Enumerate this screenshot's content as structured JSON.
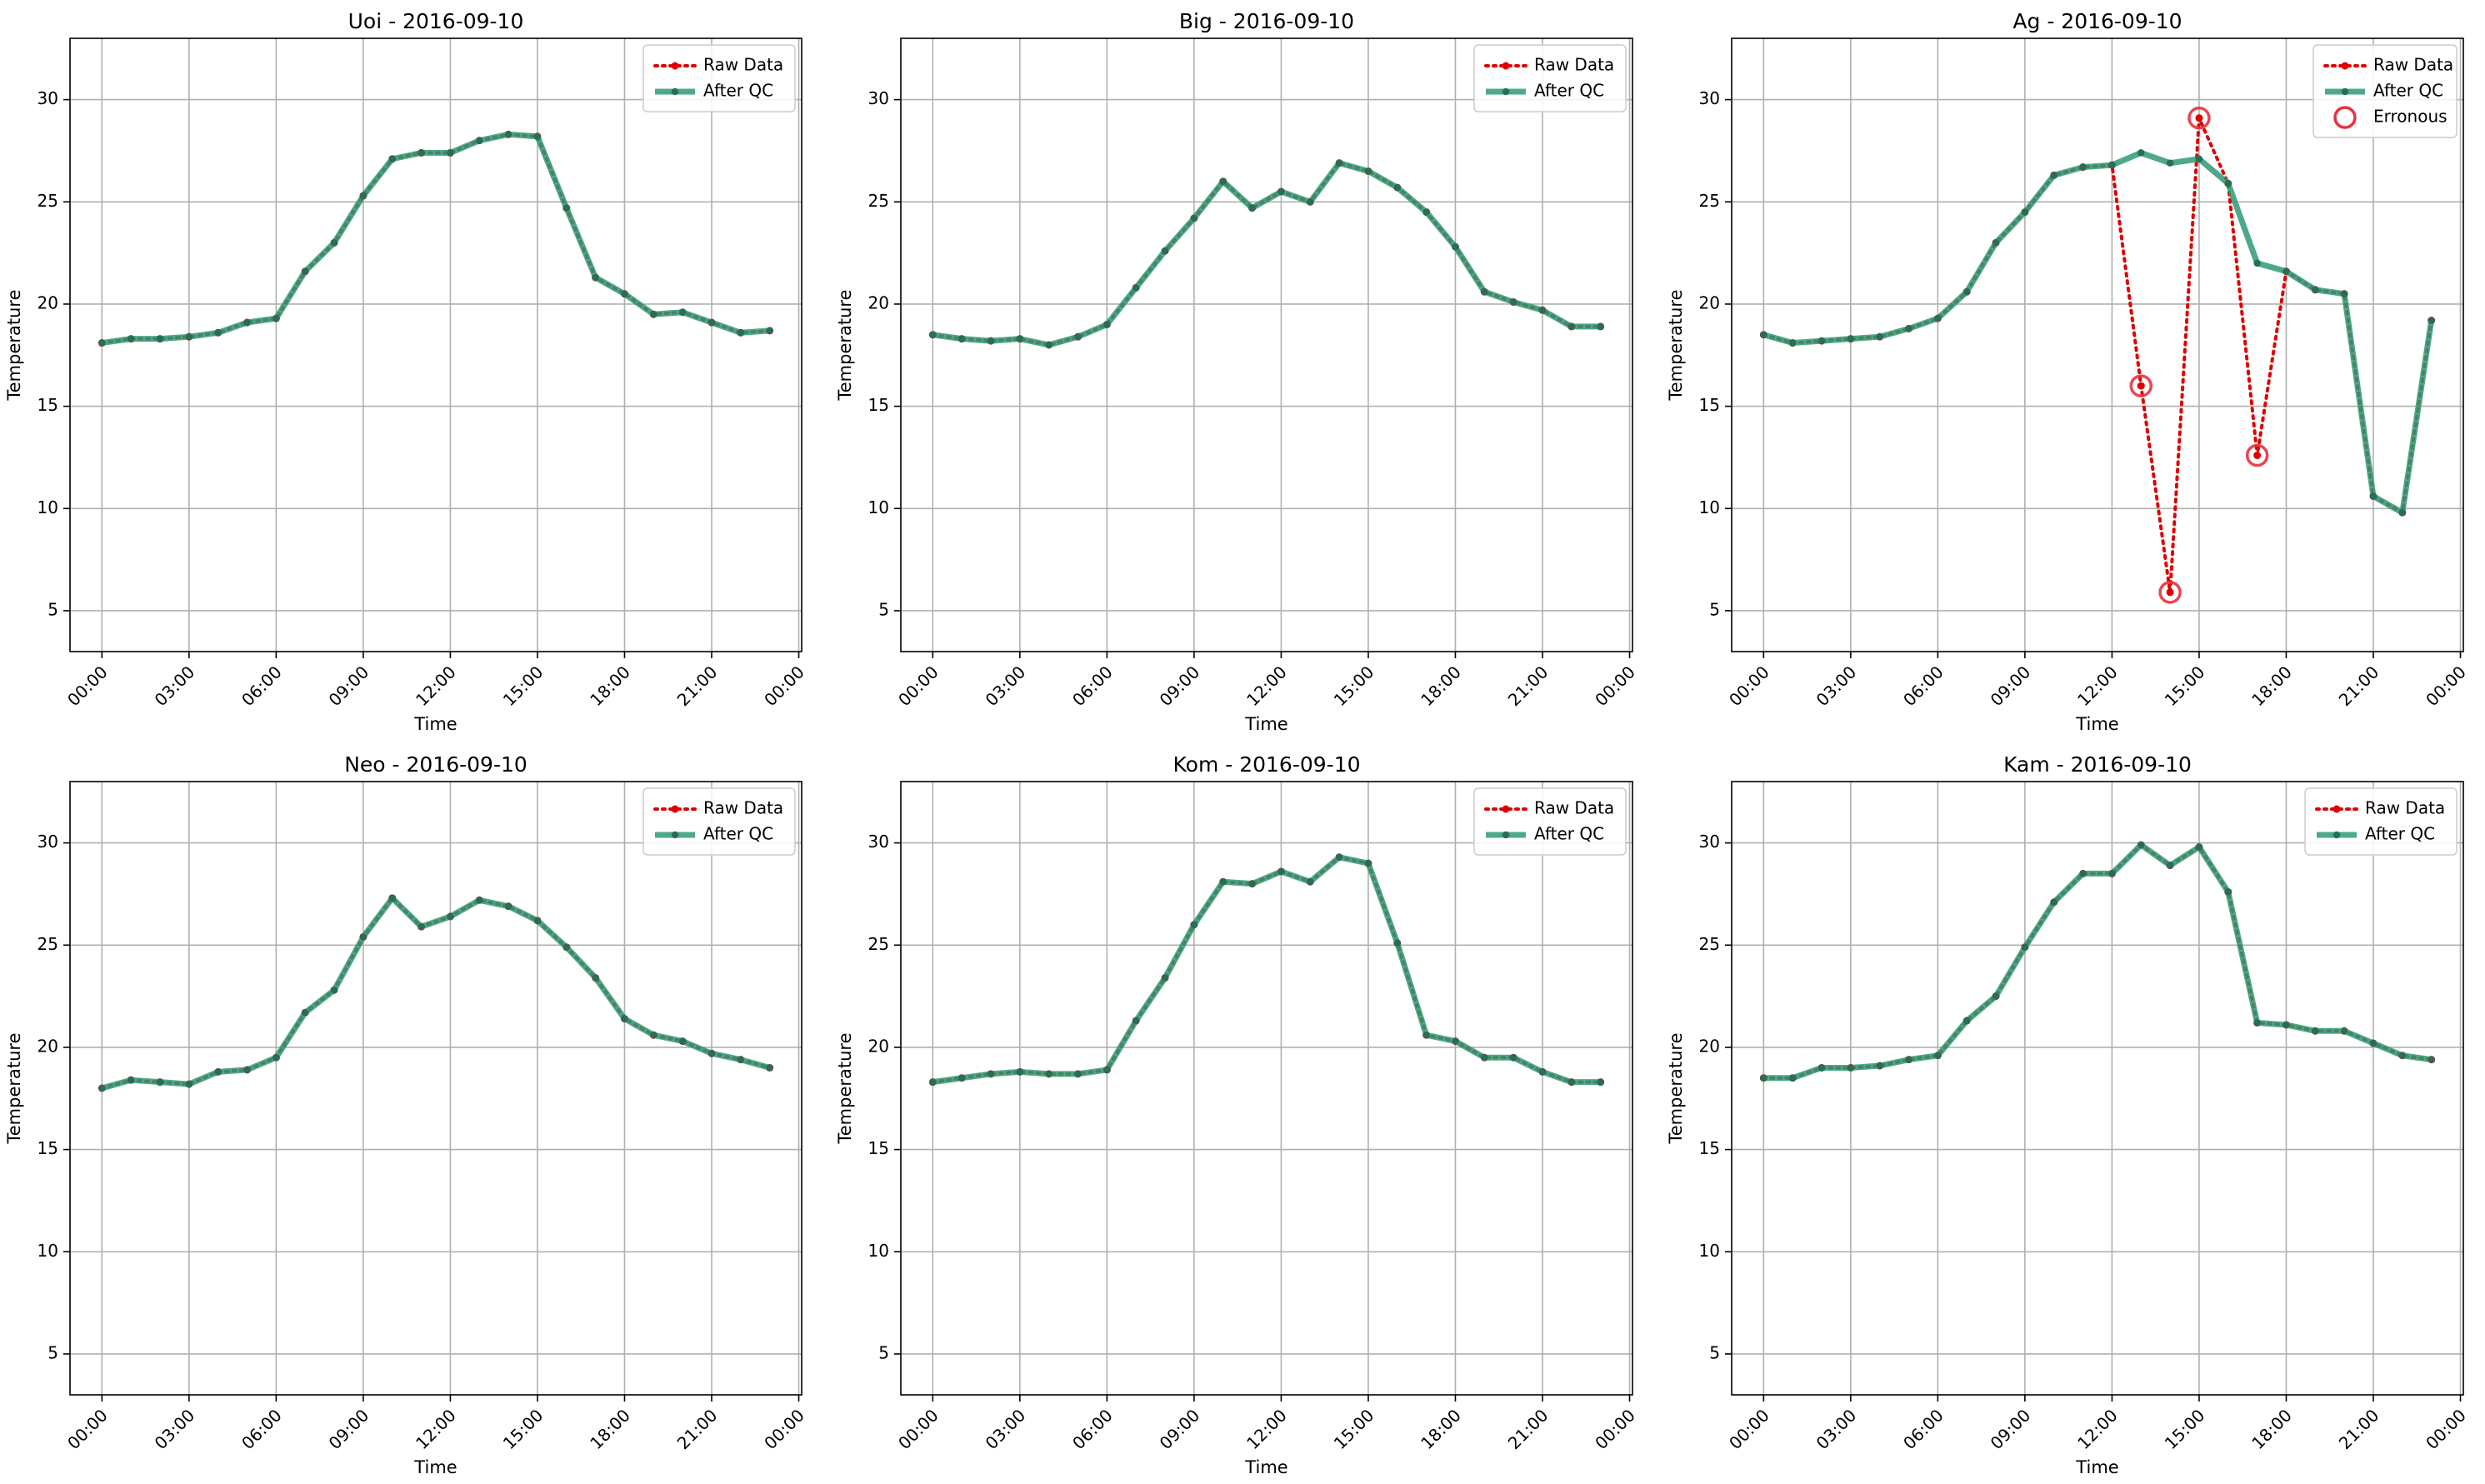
{
  "colors": {
    "raw": "#e00000",
    "qc": "#2e9a74",
    "qc_marker": "#2a6d55",
    "error": "#e8323c",
    "grid": "#b0b0b0"
  },
  "legend_labels": {
    "raw": "Raw Data",
    "qc": "After QC",
    "error": "Erronous"
  },
  "chart_data": [
    {
      "type": "line",
      "title": "Uoi - 2016-09-10",
      "xlabel": "Time",
      "ylabel": "Temperature",
      "x_ticks": [
        "00:00",
        "03:00",
        "06:00",
        "09:00",
        "12:00",
        "15:00",
        "18:00",
        "21:00",
        "00:00"
      ],
      "y_ticks": [
        5,
        10,
        15,
        20,
        25,
        30
      ],
      "ylim": [
        3,
        33
      ],
      "grid": true,
      "legend": "top-right",
      "x_hours": [
        0,
        1,
        2,
        3,
        4,
        5,
        6,
        7,
        8,
        9,
        10,
        11,
        12,
        13,
        14,
        15,
        16,
        17,
        18,
        19,
        20,
        21,
        22,
        23
      ],
      "series": [
        {
          "name": "Raw Data",
          "values": [
            18.1,
            18.3,
            18.3,
            18.4,
            18.6,
            19.1,
            19.3,
            21.6,
            23.0,
            25.3,
            27.1,
            27.4,
            27.4,
            28.0,
            28.3,
            28.2,
            24.7,
            21.3,
            20.5,
            19.5,
            19.6,
            19.1,
            18.6,
            18.7
          ]
        },
        {
          "name": "After QC",
          "values": [
            18.1,
            18.3,
            18.3,
            18.4,
            18.6,
            19.1,
            19.3,
            21.6,
            23.0,
            25.3,
            27.1,
            27.4,
            27.4,
            28.0,
            28.3,
            28.2,
            24.7,
            21.3,
            20.5,
            19.5,
            19.6,
            19.1,
            18.6,
            18.7
          ]
        }
      ]
    },
    {
      "type": "line",
      "title": "Big - 2016-09-10",
      "xlabel": "Time",
      "ylabel": "Temperature",
      "x_ticks": [
        "00:00",
        "03:00",
        "06:00",
        "09:00",
        "12:00",
        "15:00",
        "18:00",
        "21:00",
        "00:00"
      ],
      "y_ticks": [
        5,
        10,
        15,
        20,
        25,
        30
      ],
      "ylim": [
        3,
        33
      ],
      "grid": true,
      "legend": "top-right",
      "x_hours": [
        0,
        1,
        2,
        3,
        4,
        5,
        6,
        7,
        8,
        9,
        10,
        11,
        12,
        13,
        14,
        15,
        16,
        17,
        18,
        19,
        20,
        21,
        22,
        23
      ],
      "series": [
        {
          "name": "Raw Data",
          "values": [
            18.5,
            18.3,
            18.2,
            18.3,
            18.0,
            18.4,
            19.0,
            20.8,
            22.6,
            24.2,
            26.0,
            24.7,
            25.5,
            25.0,
            26.9,
            26.5,
            25.7,
            24.5,
            22.8,
            20.6,
            20.1,
            19.7,
            18.9,
            18.9
          ]
        },
        {
          "name": "After QC",
          "values": [
            18.5,
            18.3,
            18.2,
            18.3,
            18.0,
            18.4,
            19.0,
            20.8,
            22.6,
            24.2,
            26.0,
            24.7,
            25.5,
            25.0,
            26.9,
            26.5,
            25.7,
            24.5,
            22.8,
            20.6,
            20.1,
            19.7,
            18.9,
            18.9
          ]
        }
      ]
    },
    {
      "type": "line",
      "title": "Ag - 2016-09-10",
      "xlabel": "Time",
      "ylabel": "Temperature",
      "x_ticks": [
        "00:00",
        "03:00",
        "06:00",
        "09:00",
        "12:00",
        "15:00",
        "18:00",
        "21:00",
        "00:00"
      ],
      "y_ticks": [
        5,
        10,
        15,
        20,
        25,
        30
      ],
      "ylim": [
        3,
        33
      ],
      "grid": true,
      "legend": "top-right",
      "x_hours": [
        0,
        1,
        2,
        3,
        4,
        5,
        6,
        7,
        8,
        9,
        10,
        11,
        12,
        13,
        14,
        15,
        16,
        17,
        18,
        19,
        20,
        21,
        22,
        23
      ],
      "series": [
        {
          "name": "Raw Data",
          "values": [
            18.5,
            18.1,
            18.2,
            18.3,
            18.4,
            18.8,
            19.3,
            20.6,
            23.0,
            24.5,
            26.3,
            26.7,
            26.8,
            16.0,
            5.9,
            29.1,
            25.9,
            12.6,
            21.6,
            20.7,
            20.5,
            10.6,
            9.8,
            19.2
          ]
        },
        {
          "name": "After QC",
          "values": [
            18.5,
            18.1,
            18.2,
            18.3,
            18.4,
            18.8,
            19.3,
            20.6,
            23.0,
            24.5,
            26.3,
            26.7,
            26.8,
            27.4,
            26.9,
            27.1,
            25.9,
            22.0,
            21.6,
            20.7,
            20.5,
            10.6,
            9.8,
            19.2
          ]
        },
        {
          "name": "Erronous",
          "points": [
            [
              13,
              16.0
            ],
            [
              14,
              5.9
            ],
            [
              15,
              29.1
            ],
            [
              17,
              12.6
            ]
          ]
        }
      ]
    },
    {
      "type": "line",
      "title": "Neo - 2016-09-10",
      "xlabel": "Time",
      "ylabel": "Temperature",
      "x_ticks": [
        "00:00",
        "03:00",
        "06:00",
        "09:00",
        "12:00",
        "15:00",
        "18:00",
        "21:00",
        "00:00"
      ],
      "y_ticks": [
        5,
        10,
        15,
        20,
        25,
        30
      ],
      "ylim": [
        3,
        33
      ],
      "grid": true,
      "legend": "top-right",
      "x_hours": [
        0,
        1,
        2,
        3,
        4,
        5,
        6,
        7,
        8,
        9,
        10,
        11,
        12,
        13,
        14,
        15,
        16,
        17,
        18,
        19,
        20,
        21,
        22,
        23
      ],
      "series": [
        {
          "name": "Raw Data",
          "values": [
            18.0,
            18.4,
            18.3,
            18.2,
            18.8,
            18.9,
            19.5,
            21.7,
            22.8,
            25.4,
            27.3,
            25.9,
            26.4,
            27.2,
            26.9,
            26.2,
            24.9,
            23.4,
            21.4,
            20.6,
            20.3,
            19.7,
            19.4,
            19.0
          ]
        },
        {
          "name": "After QC",
          "values": [
            18.0,
            18.4,
            18.3,
            18.2,
            18.8,
            18.9,
            19.5,
            21.7,
            22.8,
            25.4,
            27.3,
            25.9,
            26.4,
            27.2,
            26.9,
            26.2,
            24.9,
            23.4,
            21.4,
            20.6,
            20.3,
            19.7,
            19.4,
            19.0
          ]
        }
      ]
    },
    {
      "type": "line",
      "title": "Kom - 2016-09-10",
      "xlabel": "Time",
      "ylabel": "Temperature",
      "x_ticks": [
        "00:00",
        "03:00",
        "06:00",
        "09:00",
        "12:00",
        "15:00",
        "18:00",
        "21:00",
        "00:00"
      ],
      "y_ticks": [
        5,
        10,
        15,
        20,
        25,
        30
      ],
      "ylim": [
        3,
        33
      ],
      "grid": true,
      "legend": "top-right",
      "x_hours": [
        0,
        1,
        2,
        3,
        4,
        5,
        6,
        7,
        8,
        9,
        10,
        11,
        12,
        13,
        14,
        15,
        16,
        17,
        18,
        19,
        20,
        21,
        22,
        23
      ],
      "series": [
        {
          "name": "Raw Data",
          "values": [
            18.3,
            18.5,
            18.7,
            18.8,
            18.7,
            18.7,
            18.9,
            21.3,
            23.4,
            26.0,
            28.1,
            28.0,
            28.6,
            28.1,
            29.3,
            29.0,
            25.1,
            20.6,
            20.3,
            19.5,
            19.5,
            18.8,
            18.3,
            18.3
          ]
        },
        {
          "name": "After QC",
          "values": [
            18.3,
            18.5,
            18.7,
            18.8,
            18.7,
            18.7,
            18.9,
            21.3,
            23.4,
            26.0,
            28.1,
            28.0,
            28.6,
            28.1,
            29.3,
            29.0,
            25.1,
            20.6,
            20.3,
            19.5,
            19.5,
            18.8,
            18.3,
            18.3
          ]
        }
      ]
    },
    {
      "type": "line",
      "title": "Kam - 2016-09-10",
      "xlabel": "Time",
      "ylabel": "Temperature",
      "x_ticks": [
        "00:00",
        "03:00",
        "06:00",
        "09:00",
        "12:00",
        "15:00",
        "18:00",
        "21:00",
        "00:00"
      ],
      "y_ticks": [
        5,
        10,
        15,
        20,
        25,
        30
      ],
      "ylim": [
        3,
        33
      ],
      "grid": true,
      "legend": "top-right",
      "x_hours": [
        0,
        1,
        2,
        3,
        4,
        5,
        6,
        7,
        8,
        9,
        10,
        11,
        12,
        13,
        14,
        15,
        16,
        17,
        18,
        19,
        20,
        21,
        22,
        23
      ],
      "series": [
        {
          "name": "Raw Data",
          "values": [
            18.5,
            18.5,
            19.0,
            19.0,
            19.1,
            19.4,
            19.6,
            21.3,
            22.5,
            24.9,
            27.1,
            28.5,
            28.5,
            29.9,
            28.9,
            29.8,
            27.6,
            21.2,
            21.1,
            20.8,
            20.8,
            20.2,
            19.6,
            19.4
          ]
        },
        {
          "name": "After QC",
          "values": [
            18.5,
            18.5,
            19.0,
            19.0,
            19.1,
            19.4,
            19.6,
            21.3,
            22.5,
            24.9,
            27.1,
            28.5,
            28.5,
            29.9,
            28.9,
            29.8,
            27.6,
            21.2,
            21.1,
            20.8,
            20.8,
            20.2,
            19.6,
            19.4
          ]
        }
      ]
    }
  ]
}
